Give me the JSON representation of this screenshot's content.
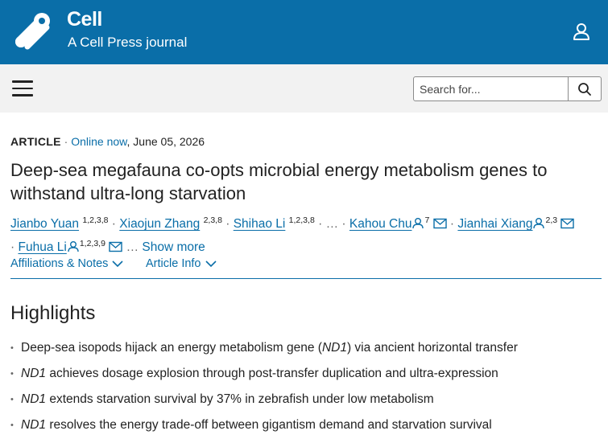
{
  "header": {
    "brand": "Cell",
    "subtitle": "A Cell Press journal",
    "logo_icon": "cell-press-logo",
    "user_icon": "user-icon"
  },
  "nav": {
    "menu_icon": "hamburger-menu-icon",
    "search_placeholder": "Search for...",
    "search_icon": "search-icon"
  },
  "article": {
    "type": "ARTICLE",
    "separator": "·",
    "status": "Online now",
    "date": ", June 05, 2026",
    "title": "Deep-sea megafauna co-opts microbial energy metabolism genes to withstand ultra-long starvation",
    "authors": [
      {
        "name": "Jianbo Yuan",
        "aff": "1,2,3,8"
      },
      {
        "name": "Xiaojun Zhang",
        "aff": "2,3,8"
      },
      {
        "name": "Shihao Li",
        "aff": "1,2,3,8"
      },
      {
        "name": "Kahou Chu",
        "aff": "7"
      },
      {
        "name": "Jianhai Xiang",
        "aff": "2,3"
      },
      {
        "name": "Fuhua Li",
        "aff": "1,2,3,9"
      }
    ],
    "ellipsis": "…",
    "show_more": "Show more",
    "tabs": [
      {
        "label": "Affiliations & Notes"
      },
      {
        "label": "Article Info"
      }
    ]
  },
  "highlights": {
    "title": "Highlights",
    "items": [
      {
        "before": "Deep-sea isopods hijack an energy metabolism gene (",
        "gene": "ND1",
        "after": ") via ancient horizontal transfer"
      },
      {
        "before": "",
        "gene": "ND1",
        "after": " achieves dosage explosion through post-transfer duplication and ultra-expression"
      },
      {
        "before": "",
        "gene": "ND1",
        "after": " extends starvation survival by 37% in zebrafish under low metabolism"
      },
      {
        "before": "",
        "gene": "ND1",
        "after": " resolves the energy trade-off between gigantism demand and starvation survival"
      }
    ]
  },
  "colors": {
    "brand_blue": "#0a6ea8",
    "nav_bg": "#f2f2f2",
    "text": "#222222"
  }
}
